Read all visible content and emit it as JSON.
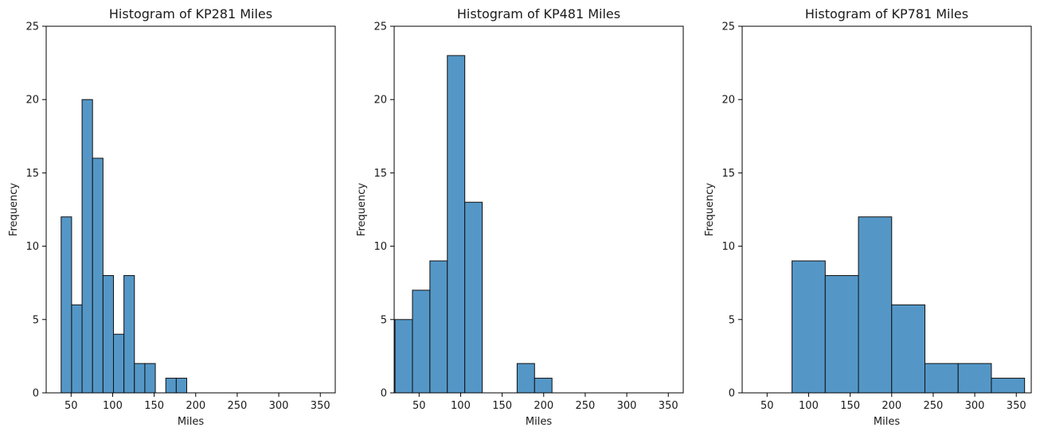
{
  "chart_data": [
    {
      "type": "histogram",
      "title": "Histogram of KP281 Miles",
      "xlabel": "Miles",
      "ylabel": "Frequency",
      "xlim": [
        20,
        368
      ],
      "ylim": [
        0,
        25
      ],
      "xticks": [
        50,
        100,
        150,
        200,
        250,
        300,
        350
      ],
      "yticks": [
        0,
        5,
        10,
        15,
        20,
        25
      ],
      "bar_color": "#5497c7",
      "edge_color": "#111111",
      "bins": [
        {
          "x0": 38,
          "x1": 50.6,
          "count": 12
        },
        {
          "x0": 50.6,
          "x1": 63.2,
          "count": 6
        },
        {
          "x0": 63.2,
          "x1": 75.8,
          "count": 20
        },
        {
          "x0": 75.8,
          "x1": 88.4,
          "count": 16
        },
        {
          "x0": 88.4,
          "x1": 101,
          "count": 8
        },
        {
          "x0": 101,
          "x1": 113.6,
          "count": 4
        },
        {
          "x0": 113.6,
          "x1": 126.2,
          "count": 8
        },
        {
          "x0": 126.2,
          "x1": 138.8,
          "count": 2
        },
        {
          "x0": 138.8,
          "x1": 151.4,
          "count": 2
        },
        {
          "x0": 151.4,
          "x1": 164,
          "count": 0
        },
        {
          "x0": 164,
          "x1": 176.6,
          "count": 1
        },
        {
          "x0": 176.6,
          "x1": 189.2,
          "count": 1
        }
      ]
    },
    {
      "type": "histogram",
      "title": "Histogram of KP481 Miles",
      "xlabel": "Miles",
      "ylabel": "Frequency",
      "xlim": [
        20,
        368
      ],
      "ylim": [
        0,
        25
      ],
      "xticks": [
        50,
        100,
        150,
        200,
        250,
        300,
        350
      ],
      "yticks": [
        0,
        5,
        10,
        15,
        20,
        25
      ],
      "bar_color": "#5497c7",
      "edge_color": "#111111",
      "bins": [
        {
          "x0": 21,
          "x1": 42,
          "count": 5
        },
        {
          "x0": 42,
          "x1": 63,
          "count": 7
        },
        {
          "x0": 63,
          "x1": 84,
          "count": 9
        },
        {
          "x0": 84,
          "x1": 105,
          "count": 23
        },
        {
          "x0": 105,
          "x1": 126,
          "count": 13
        },
        {
          "x0": 126,
          "x1": 147,
          "count": 0
        },
        {
          "x0": 147,
          "x1": 168,
          "count": 0
        },
        {
          "x0": 168,
          "x1": 189,
          "count": 2
        },
        {
          "x0": 189,
          "x1": 210,
          "count": 1
        }
      ]
    },
    {
      "type": "histogram",
      "title": "Histogram of KP781 Miles",
      "xlabel": "Miles",
      "ylabel": "Frequency",
      "xlim": [
        20,
        368
      ],
      "ylim": [
        0,
        25
      ],
      "xticks": [
        50,
        100,
        150,
        200,
        250,
        300,
        350
      ],
      "yticks": [
        0,
        5,
        10,
        15,
        20,
        25
      ],
      "bar_color": "#5497c7",
      "edge_color": "#111111",
      "bins": [
        {
          "x0": 80,
          "x1": 120,
          "count": 9
        },
        {
          "x0": 120,
          "x1": 160,
          "count": 8
        },
        {
          "x0": 160,
          "x1": 200,
          "count": 12
        },
        {
          "x0": 200,
          "x1": 240,
          "count": 6
        },
        {
          "x0": 240,
          "x1": 280,
          "count": 2
        },
        {
          "x0": 280,
          "x1": 320,
          "count": 2
        },
        {
          "x0": 320,
          "x1": 360,
          "count": 1
        }
      ]
    }
  ]
}
